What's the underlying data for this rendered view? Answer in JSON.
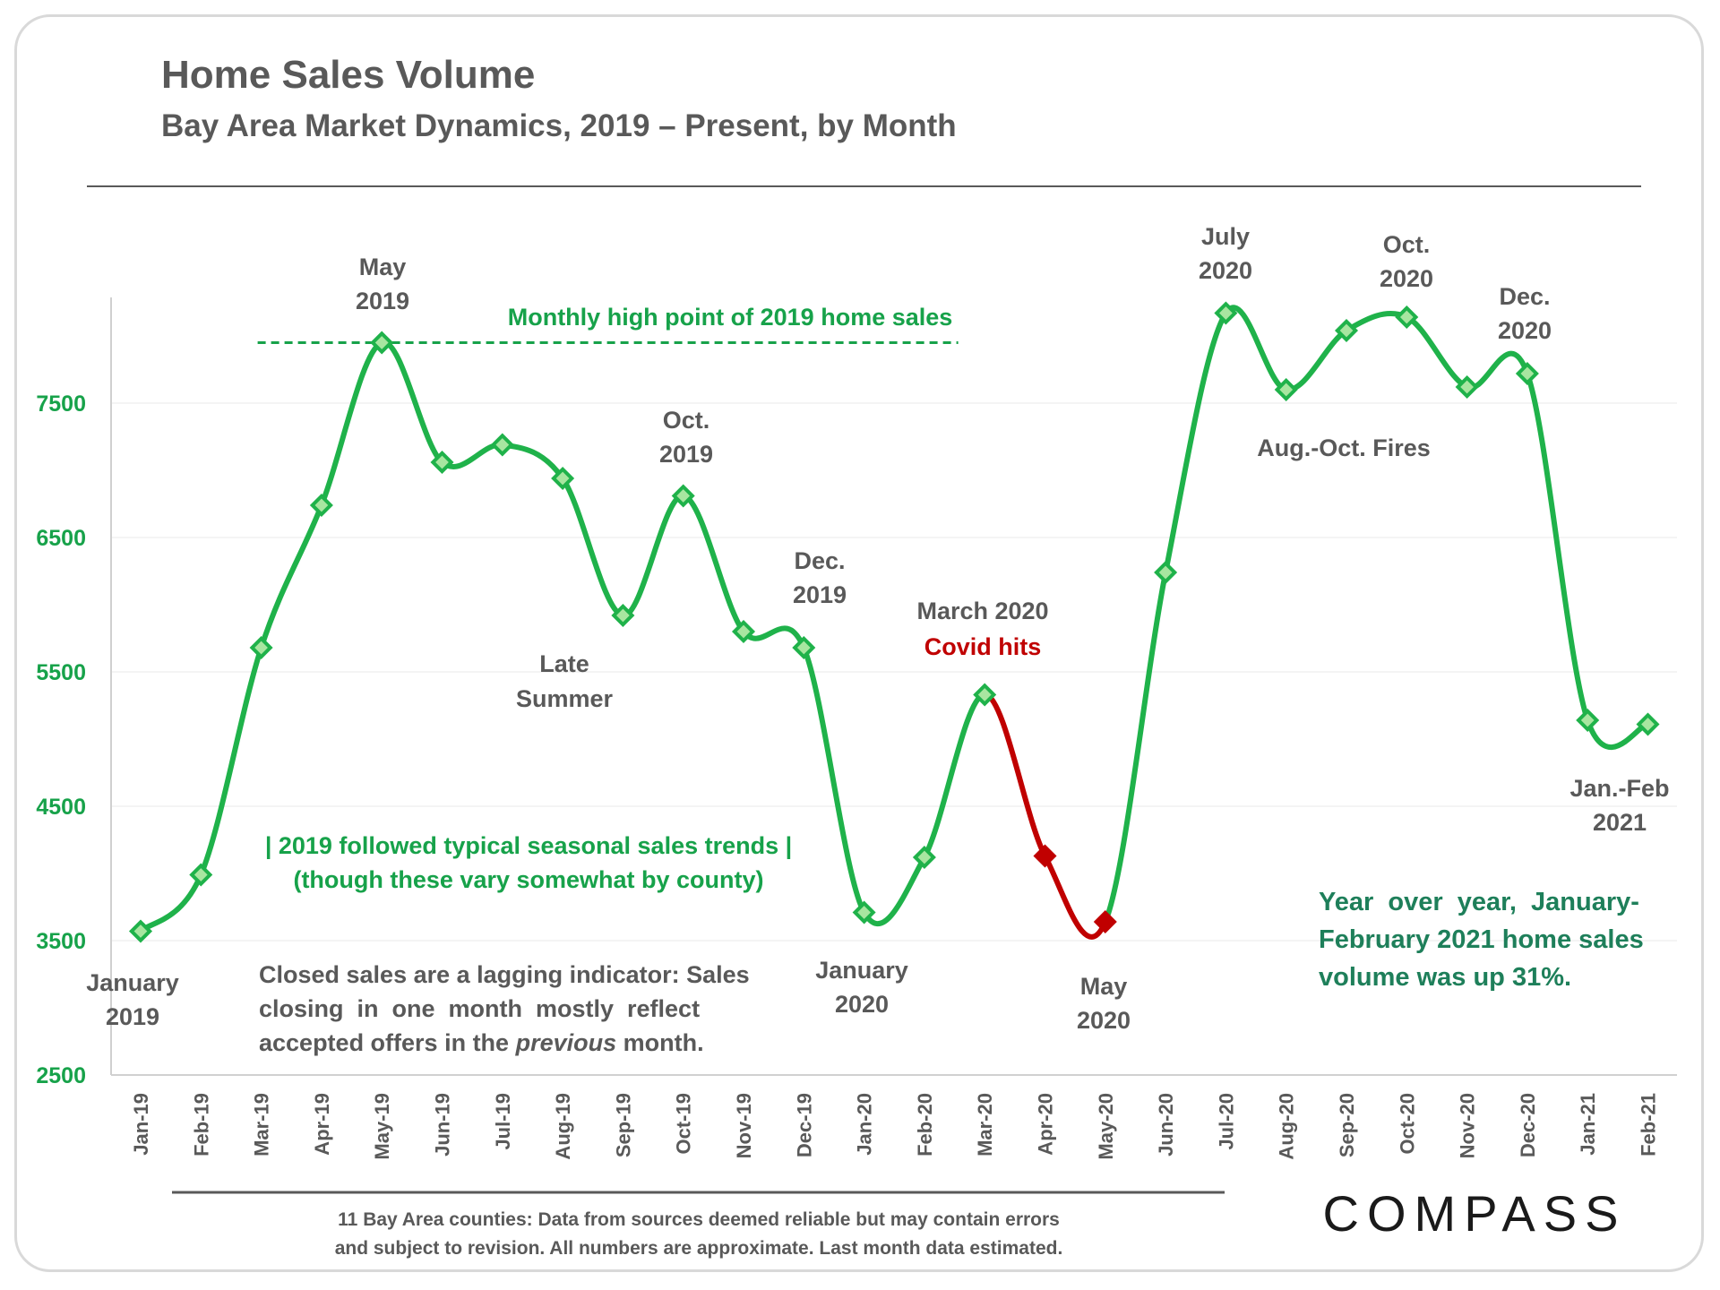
{
  "header": {
    "title": "Home Sales Volume",
    "subtitle": "Bay Area Market Dynamics, 2019 – Present, by Month"
  },
  "chart_data": {
    "type": "line",
    "title": "Home Sales Volume",
    "subtitle": "Bay Area Market Dynamics, 2019 – Present, by Month",
    "xlabel": "",
    "ylabel": "",
    "ylim": [
      2500,
      8500
    ],
    "yticks": [
      2500,
      3500,
      4500,
      5500,
      6500,
      7500
    ],
    "grid": true,
    "categories": [
      "Jan-19",
      "Feb-19",
      "Mar-19",
      "Apr-19",
      "May-19",
      "Jun-19",
      "Jul-19",
      "Aug-19",
      "Sep-19",
      "Oct-19",
      "Nov-19",
      "Dec-19",
      "Jan-20",
      "Feb-20",
      "Mar-20",
      "Apr-20",
      "May-20",
      "Jun-20",
      "Jul-20",
      "Aug-20",
      "Sep-20",
      "Oct-20",
      "Nov-20",
      "Dec-20",
      "Jan-21",
      "Feb-21"
    ],
    "series": [
      {
        "name": "Home Sales",
        "color": "#1fb24a",
        "highlight_color": "#c00000",
        "highlight_range": [
          "Mar-20",
          "May-20"
        ],
        "values": [
          3570,
          3990,
          5680,
          6740,
          7950,
          7060,
          7190,
          6940,
          5920,
          6810,
          5800,
          5680,
          3710,
          4120,
          5330,
          4130,
          3640,
          6240,
          8170,
          7600,
          8040,
          8140,
          7620,
          7720,
          5140,
          5110
        ]
      }
    ],
    "reference_line": {
      "value": 7950,
      "from": "Mar-19",
      "to": "Jan-20",
      "label": "Monthly high point of 2019 home sales",
      "color": "#17a24a"
    },
    "annotations": {
      "may19": [
        "May",
        "2019"
      ],
      "oct19": [
        "Oct.",
        "2019"
      ],
      "dec19": [
        "Dec.",
        "2019"
      ],
      "late_summer": [
        "Late",
        "Summer"
      ],
      "mar20": [
        "March 2020",
        "Covid hits"
      ],
      "jan19": [
        "January",
        "2019"
      ],
      "jan20": [
        "January",
        "2020"
      ],
      "may20": [
        "May",
        "2020"
      ],
      "jul20": [
        "July",
        "2020"
      ],
      "oct20": [
        "Oct.",
        "2020"
      ],
      "dec20": [
        "Dec.",
        "2020"
      ],
      "fires": "Aug.-Oct. Fires",
      "janfeb21": [
        "Jan.-Feb",
        "2021"
      ],
      "seasonal": [
        "| 2019 followed typical seasonal sales trends |",
        "(though these vary somewhat by county)"
      ]
    }
  },
  "notes": {
    "lagging": [
      "Closed sales are a lagging indicator: Sales",
      "closing  in  one  month  mostly  reflect",
      "accepted offers in the ",
      "previous",
      " month."
    ],
    "yoy": [
      "Year  over  year,  January-",
      "February 2021 home sales",
      "volume was up 31%."
    ]
  },
  "footer": {
    "lines": [
      "11 Bay Area counties: Data from sources deemed reliable but may contain errors",
      "and subject to revision. All numbers are approximate. Last month data estimated."
    ]
  },
  "brand": {
    "logo_text": "COMPASS"
  }
}
